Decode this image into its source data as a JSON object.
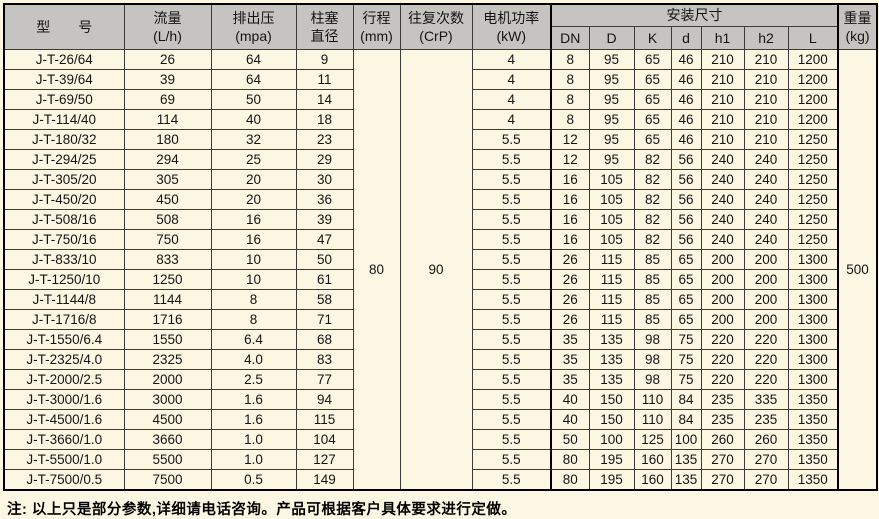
{
  "table": {
    "headers": {
      "model": "型　　号",
      "flow_line1": "流量",
      "flow_line2": "(L/h)",
      "pressure_line1": "排出压",
      "pressure_line2": "(mpa)",
      "plunger_line1": "柱塞",
      "plunger_line2": "直径",
      "stroke_line1": "行程",
      "stroke_line2": "(mm)",
      "recip_line1": "往复次数",
      "recip_line2": "(CrP)",
      "power_line1": "电机功率",
      "power_line2": "(kW)",
      "install_group": "安装尺寸",
      "install_cols": [
        "DN",
        "D",
        "K",
        "d",
        "h1",
        "h2",
        "L"
      ],
      "weight_line1": "重量",
      "weight_line2": "(kg)"
    },
    "merged": {
      "stroke": "80",
      "recip": "90",
      "weight": "500"
    },
    "rows": [
      {
        "model": "J-T-26/64",
        "flow": "26",
        "pressure": "64",
        "plunger": "9",
        "power": "4",
        "dims": [
          "8",
          "95",
          "65",
          "46",
          "210",
          "210",
          "1200"
        ]
      },
      {
        "model": "J-T-39/64",
        "flow": "39",
        "pressure": "64",
        "plunger": "11",
        "power": "4",
        "dims": [
          "8",
          "95",
          "65",
          "46",
          "210",
          "210",
          "1200"
        ]
      },
      {
        "model": "J-T-69/50",
        "flow": "69",
        "pressure": "50",
        "plunger": "14",
        "power": "4",
        "dims": [
          "8",
          "95",
          "65",
          "46",
          "210",
          "210",
          "1200"
        ]
      },
      {
        "model": "J-T-114/40",
        "flow": "114",
        "pressure": "40",
        "plunger": "18",
        "power": "4",
        "dims": [
          "8",
          "95",
          "65",
          "46",
          "210",
          "210",
          "1200"
        ]
      },
      {
        "model": "J-T-180/32",
        "flow": "180",
        "pressure": "32",
        "plunger": "23",
        "power": "5.5",
        "dims": [
          "12",
          "95",
          "65",
          "46",
          "210",
          "210",
          "1250"
        ]
      },
      {
        "model": "J-T-294/25",
        "flow": "294",
        "pressure": "25",
        "plunger": "29",
        "power": "5.5",
        "dims": [
          "12",
          "95",
          "82",
          "56",
          "240",
          "240",
          "1250"
        ]
      },
      {
        "model": "J-T-305/20",
        "flow": "305",
        "pressure": "20",
        "plunger": "30",
        "power": "5.5",
        "dims": [
          "16",
          "105",
          "82",
          "56",
          "240",
          "240",
          "1250"
        ]
      },
      {
        "model": "J-T-450/20",
        "flow": "450",
        "pressure": "20",
        "plunger": "36",
        "power": "5.5",
        "dims": [
          "16",
          "105",
          "82",
          "56",
          "240",
          "240",
          "1250"
        ]
      },
      {
        "model": "J-T-508/16",
        "flow": "508",
        "pressure": "16",
        "plunger": "39",
        "power": "5.5",
        "dims": [
          "16",
          "105",
          "82",
          "56",
          "240",
          "240",
          "1250"
        ]
      },
      {
        "model": "J-T-750/16",
        "flow": "750",
        "pressure": "16",
        "plunger": "47",
        "power": "5.5",
        "dims": [
          "16",
          "105",
          "82",
          "56",
          "240",
          "240",
          "1250"
        ]
      },
      {
        "model": "J-T-833/10",
        "flow": "833",
        "pressure": "10",
        "plunger": "50",
        "power": "5.5",
        "dims": [
          "26",
          "115",
          "85",
          "65",
          "200",
          "200",
          "1300"
        ]
      },
      {
        "model": "J-T-1250/10",
        "flow": "1250",
        "pressure": "10",
        "plunger": "61",
        "power": "5.5",
        "dims": [
          "26",
          "115",
          "85",
          "65",
          "200",
          "200",
          "1300"
        ]
      },
      {
        "model": "J-T-1144/8",
        "flow": "1144",
        "pressure": "8",
        "plunger": "58",
        "power": "5.5",
        "dims": [
          "26",
          "115",
          "85",
          "65",
          "200",
          "200",
          "1300"
        ]
      },
      {
        "model": "J-T-1716/8",
        "flow": "1716",
        "pressure": "8",
        "plunger": "71",
        "power": "5.5",
        "dims": [
          "26",
          "115",
          "85",
          "65",
          "200",
          "200",
          "1300"
        ]
      },
      {
        "model": "J-T-1550/6.4",
        "flow": "1550",
        "pressure": "6.4",
        "plunger": "68",
        "power": "5.5",
        "dims": [
          "35",
          "135",
          "98",
          "75",
          "220",
          "220",
          "1300"
        ]
      },
      {
        "model": "J-T-2325/4.0",
        "flow": "2325",
        "pressure": "4.0",
        "plunger": "83",
        "power": "5.5",
        "dims": [
          "35",
          "135",
          "98",
          "75",
          "220",
          "220",
          "1300"
        ]
      },
      {
        "model": "J-T-2000/2.5",
        "flow": "2000",
        "pressure": "2.5",
        "plunger": "77",
        "power": "5.5",
        "dims": [
          "35",
          "135",
          "98",
          "75",
          "220",
          "220",
          "1300"
        ]
      },
      {
        "model": "J-T-3000/1.6",
        "flow": "3000",
        "pressure": "1.6",
        "plunger": "94",
        "power": "5.5",
        "dims": [
          "40",
          "150",
          "110",
          "84",
          "235",
          "335",
          "1350"
        ]
      },
      {
        "model": "J-T-4500/1.6",
        "flow": "4500",
        "pressure": "1.6",
        "plunger": "115",
        "power": "5.5",
        "dims": [
          "40",
          "150",
          "110",
          "84",
          "235",
          "235",
          "1350"
        ]
      },
      {
        "model": "J-T-3660/1.0",
        "flow": "3660",
        "pressure": "1.0",
        "plunger": "104",
        "power": "5.5",
        "dims": [
          "50",
          "100",
          "125",
          "100",
          "260",
          "260",
          "1350"
        ]
      },
      {
        "model": "J-T-5500/1.0",
        "flow": "5500",
        "pressure": "1.0",
        "plunger": "127",
        "power": "5.5",
        "dims": [
          "80",
          "195",
          "160",
          "135",
          "270",
          "270",
          "1350"
        ]
      },
      {
        "model": "J-T-7500/0.5",
        "flow": "7500",
        "pressure": "0.5",
        "plunger": "149",
        "power": "5.5",
        "dims": [
          "80",
          "195",
          "160",
          "135",
          "270",
          "270",
          "1350"
        ]
      }
    ]
  },
  "colors": {
    "page_bg": "#fbf7e3",
    "header_bg": "#c5c4c1",
    "grid_line": "#3c3c3c",
    "outer_border": "#000000"
  },
  "note": "注: 以上只是部分参数,详细请电话咨询。产品可根据客户具体要求进行定做。"
}
